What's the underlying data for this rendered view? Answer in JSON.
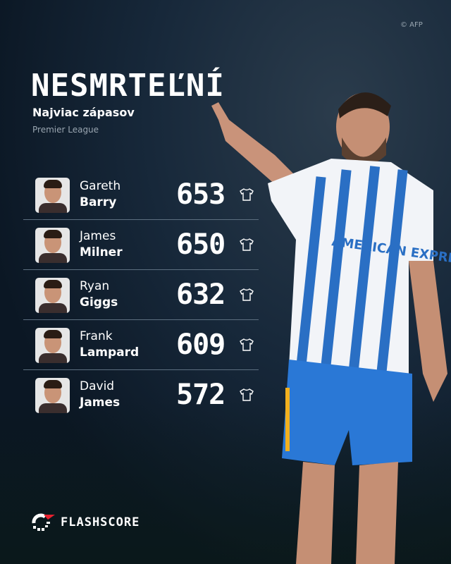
{
  "credit": "© AFP",
  "title": "NESMRTEĽNÍ",
  "subtitle": "Najviac zápasov",
  "competition": "Premier League",
  "players": [
    {
      "first": "Gareth",
      "last": "Barry",
      "matches": "653"
    },
    {
      "first": "James",
      "last": "Milner",
      "matches": "650"
    },
    {
      "first": "Ryan",
      "last": "Giggs",
      "matches": "632"
    },
    {
      "first": "Frank",
      "last": "Lampard",
      "matches": "609"
    },
    {
      "first": "David",
      "last": "James",
      "matches": "572"
    }
  ],
  "icons": {
    "matches": "shirt-icon"
  },
  "brand": {
    "name": "FLASHSCORE",
    "accent": "#e8212f"
  },
  "sponsor_text": "AMERICAN EXPRESS"
}
